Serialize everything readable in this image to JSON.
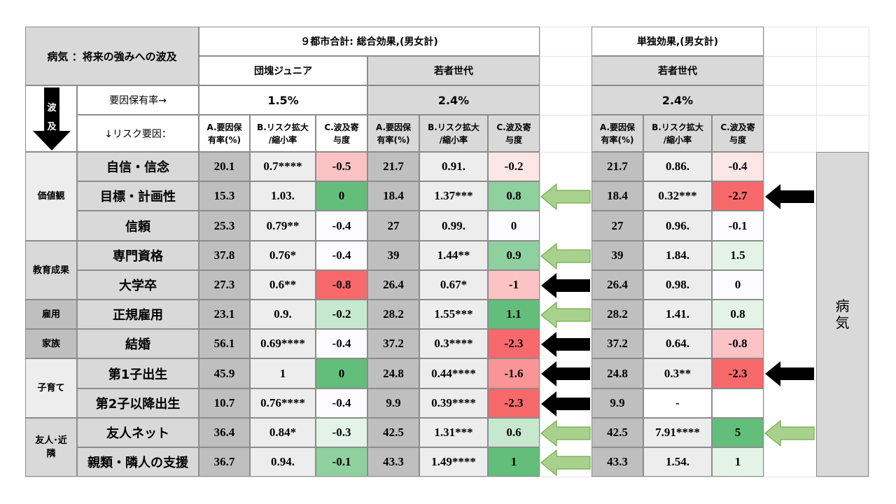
{
  "header": {
    "title": "病気 ：将来の強みへの波及",
    "combined_title": "９都市合計: 総合効果,(男女計)",
    "single_title": "単独効果,(男女計)",
    "gen_dankai": "団塊ジュニア",
    "gen_young": "若者世代",
    "gen_young_single": "若者世代",
    "rate_label": "要因保有率→",
    "risk_label": "↓リスク要因：",
    "rate_dankai": "1.5%",
    "rate_young": "2.4%",
    "rate_young_single": "2.4%",
    "wave_char1": "波",
    "wave_char2": "及",
    "col_a": "A.要因保\n有率(%)",
    "col_b": "B.リスク拡大\n/縮小率",
    "col_c": "C.波及寄\n与度",
    "disease_label": "病\n気"
  },
  "colors": {
    "strong_green": "#63be7b",
    "mid_green": "#8fd09f",
    "light_green": "#c6e8cf",
    "pale_green": "#e3f3e7",
    "strong_red": "#f8696b",
    "mid_red": "#fa9597",
    "light_red": "#fcc3c4",
    "pale_red": "#fde6e6",
    "neutral": "#fcfcff",
    "arrow_green": "#a9d18e",
    "arrow_black": "#000000"
  },
  "categories": [
    {
      "label": "価値観",
      "rows": [
        0,
        1,
        2
      ]
    },
    {
      "label": "教育成果",
      "rows": [
        3,
        4
      ]
    },
    {
      "label": "雇用",
      "rows": [
        5
      ]
    },
    {
      "label": "家族",
      "rows": [
        6
      ]
    },
    {
      "label": "子育て",
      "rows": [
        7,
        8
      ]
    },
    {
      "label": "友人･近\n隣",
      "rows": [
        9,
        10
      ]
    }
  ],
  "rows": [
    {
      "factor": "自信・信念",
      "a1": "20.1",
      "b1": "0.7****",
      "c1": "-0.5",
      "c1col": "light_red",
      "a2": "21.7",
      "b2": "0.91.",
      "c2": "-0.2",
      "c2col": "pale_red",
      "arrow_mid": "",
      "a3": "21.7",
      "b3": "0.86.",
      "c3": "-0.4",
      "c3col": "pale_red",
      "arrow_right": ""
    },
    {
      "factor": "目標・計画性",
      "a1": "15.3",
      "b1": "1.03.",
      "c1": "0",
      "c1col": "strong_green",
      "a2": "18.4",
      "b2": "1.37***",
      "c2": "0.8",
      "c2col": "mid_green",
      "arrow_mid": "green",
      "a3": "18.4",
      "b3": "0.32***",
      "c3": "-2.7",
      "c3col": "strong_red",
      "arrow_right": "black"
    },
    {
      "factor": "信頼",
      "a1": "25.3",
      "b1": "0.79**",
      "c1": "-0.4",
      "c1col": "neutral",
      "a2": "27",
      "b2": "0.99.",
      "c2": "0",
      "c2col": "neutral",
      "arrow_mid": "",
      "a3": "27",
      "b3": "0.96.",
      "c3": "-0.1",
      "c3col": "neutral",
      "arrow_right": ""
    },
    {
      "factor": "専門資格",
      "a1": "37.8",
      "b1": "0.76*",
      "c1": "-0.4",
      "c1col": "neutral",
      "a2": "39",
      "b2": "1.44**",
      "c2": "0.9",
      "c2col": "mid_green",
      "arrow_mid": "green",
      "a3": "39",
      "b3": "1.84.",
      "c3": "1.5",
      "c3col": "pale_green",
      "arrow_right": ""
    },
    {
      "factor": "大学卒",
      "a1": "27.3",
      "b1": "0.6**",
      "c1": "-0.8",
      "c1col": "strong_red",
      "a2": "26.4",
      "b2": "0.67*",
      "c2": "-1",
      "c2col": "light_red",
      "arrow_mid": "black",
      "a3": "26.4",
      "b3": "0.98.",
      "c3": "0",
      "c3col": "neutral",
      "arrow_right": ""
    },
    {
      "factor": "正規雇用",
      "a1": "23.1",
      "b1": "0.9.",
      "c1": "-0.2",
      "c1col": "light_green",
      "a2": "28.2",
      "b2": "1.55***",
      "c2": "1.1",
      "c2col": "strong_green",
      "arrow_mid": "green",
      "a3": "28.2",
      "b3": "1.41.",
      "c3": "0.8",
      "c3col": "pale_green",
      "arrow_right": ""
    },
    {
      "factor": "結婚",
      "a1": "56.1",
      "b1": "0.69****",
      "c1": "-0.4",
      "c1col": "neutral",
      "a2": "37.2",
      "b2": "0.3****",
      "c2": "-2.3",
      "c2col": "strong_red",
      "arrow_mid": "black",
      "a3": "37.2",
      "b3": "0.64.",
      "c3": "-0.8",
      "c3col": "light_red",
      "arrow_right": ""
    },
    {
      "factor": "第1子出生",
      "a1": "45.9",
      "b1": "1",
      "c1": "0",
      "c1col": "strong_green",
      "a2": "24.8",
      "b2": "0.44****",
      "c2": "-1.6",
      "c2col": "mid_red",
      "arrow_mid": "black",
      "a3": "24.8",
      "b3": "0.3**",
      "c3": "-2.3",
      "c3col": "strong_red",
      "arrow_right": "black"
    },
    {
      "factor": "第2子以降出生",
      "a1": "10.7",
      "b1": "0.76****",
      "c1": "-0.4",
      "c1col": "neutral",
      "a2": "9.9",
      "b2": "0.39****",
      "c2": "-2.3",
      "c2col": "strong_red",
      "arrow_mid": "black",
      "a3": "9.9",
      "b3": "-",
      "c3": "",
      "c3col": "neutral",
      "arrow_right": ""
    },
    {
      "factor": "友人ネット",
      "a1": "36.4",
      "b1": "0.84*",
      "c1": "-0.3",
      "c1col": "pale_green",
      "a2": "42.5",
      "b2": "1.31***",
      "c2": "0.6",
      "c2col": "light_green",
      "arrow_mid": "green",
      "a3": "42.5",
      "b3": "7.91****",
      "c3": "5",
      "c3col": "strong_green",
      "arrow_right": "green"
    },
    {
      "factor": "親類・隣人の支援",
      "a1": "36.7",
      "b1": "0.94.",
      "c1": "-0.1",
      "c1col": "mid_green",
      "a2": "43.3",
      "b2": "1.49****",
      "c2": "1",
      "c2col": "strong_green",
      "arrow_mid": "green",
      "a3": "43.3",
      "b3": "1.54.",
      "c3": "1",
      "c3col": "pale_green",
      "arrow_right": ""
    }
  ]
}
